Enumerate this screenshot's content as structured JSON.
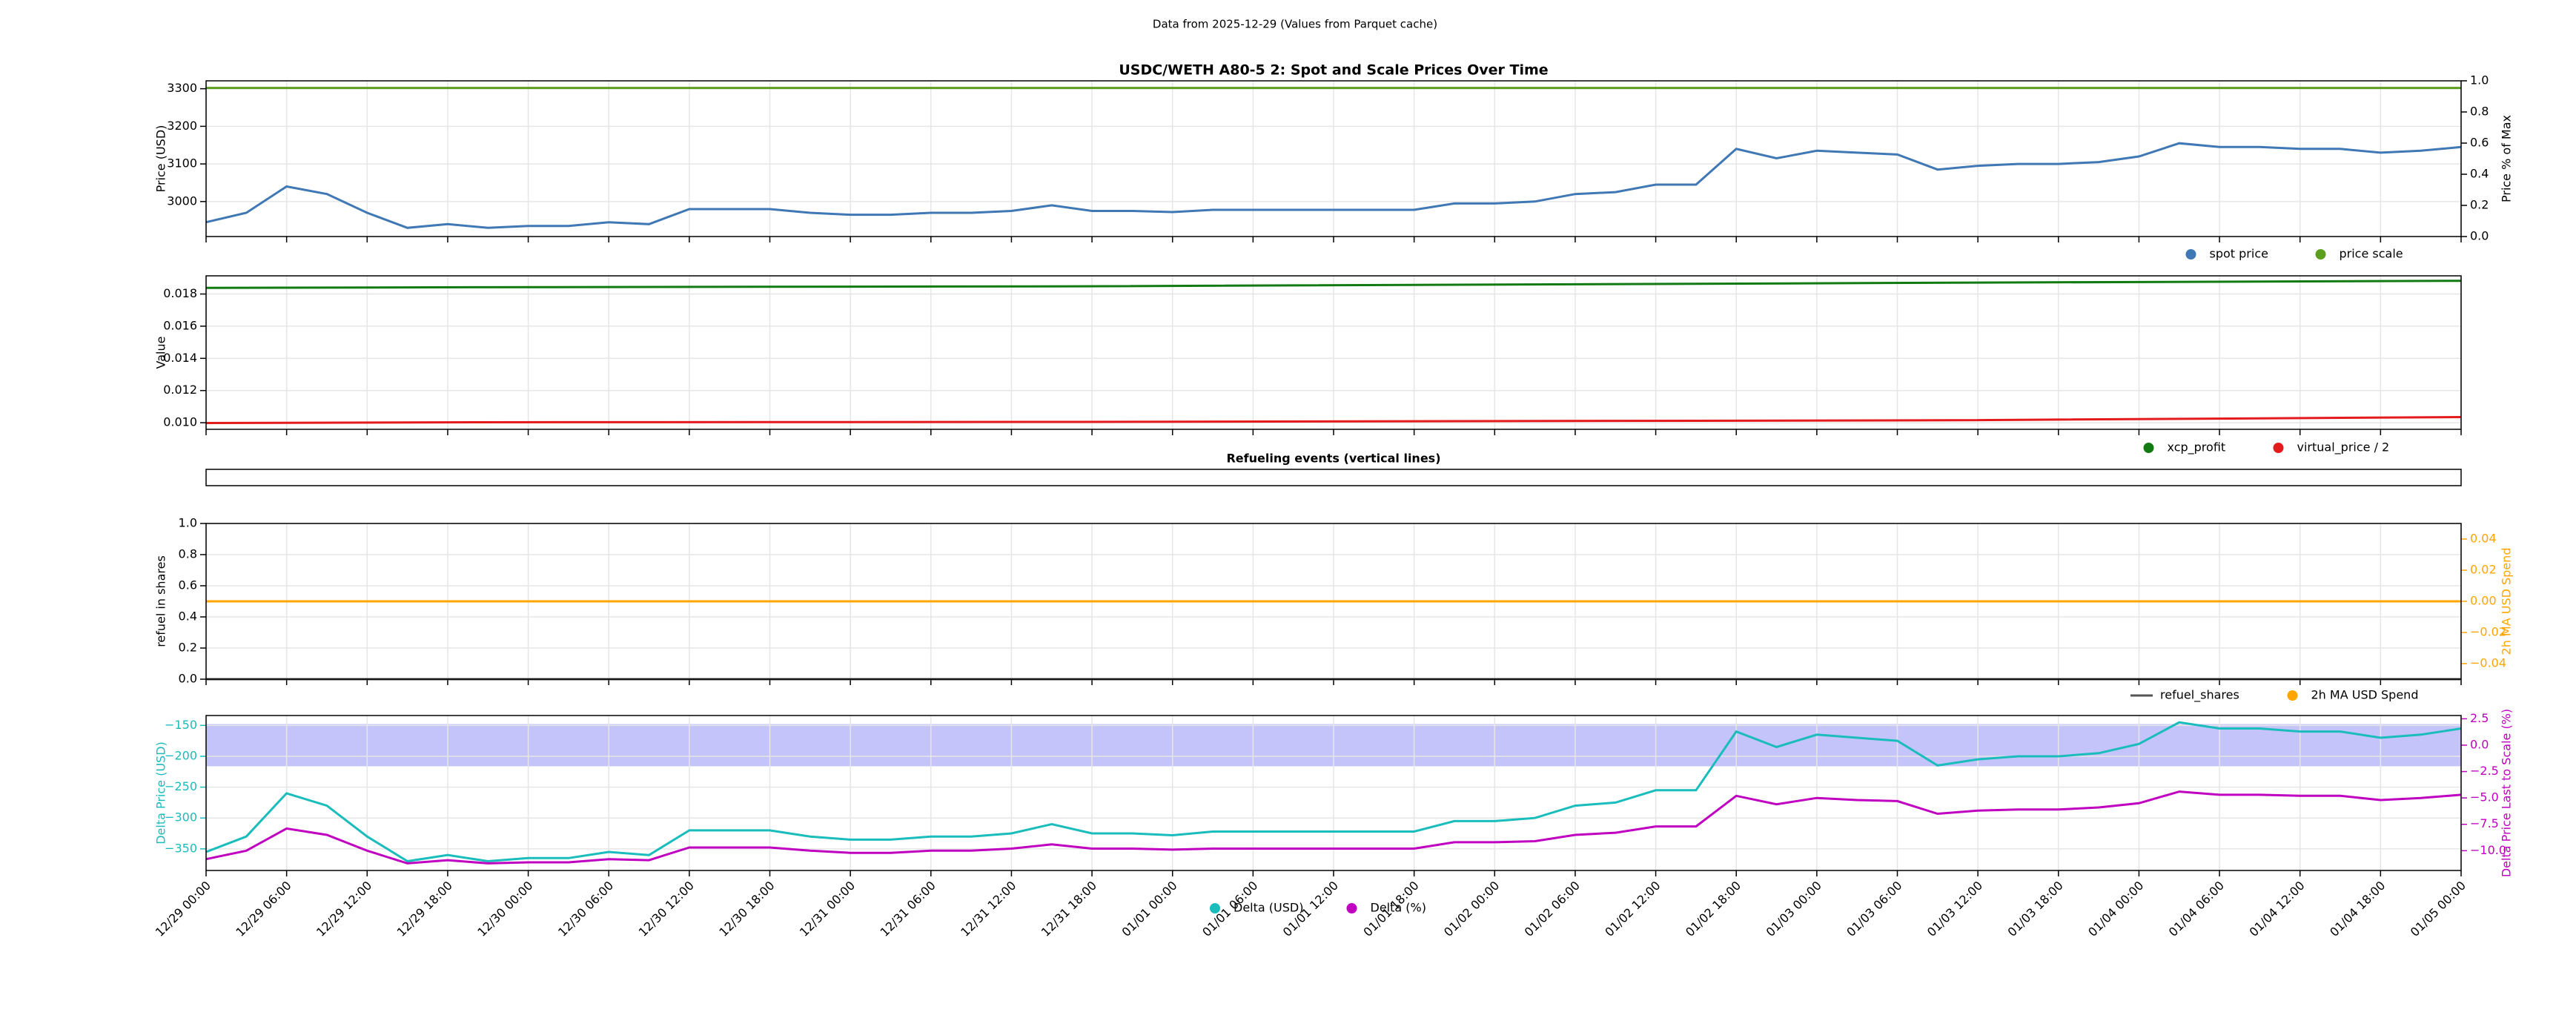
{
  "title": "Data from 2025-12-29 (Values from Parquet cache)",
  "chart_data": [
    {
      "type": "line",
      "title": "USDC/WETH A80-5 2: Spot and Scale Prices Over Time",
      "ylabel": "Price (USD)",
      "y2label": "Price % of Max",
      "grid": true,
      "legend": "below right",
      "xlim": [
        0,
        168
      ],
      "xticks": [
        0,
        6,
        12,
        18,
        24,
        30,
        36,
        42,
        48,
        54,
        60,
        66,
        72,
        78,
        84,
        90,
        96,
        102,
        108,
        114,
        120,
        126,
        132,
        138,
        144,
        150,
        156,
        162,
        168
      ],
      "ylim": [
        2907,
        3321
      ],
      "yticks": [
        3000,
        3100,
        3200,
        3300
      ],
      "y2lim": [
        0,
        1
      ],
      "y2ticks": [
        {
          "value": 0,
          "label": "0.0"
        },
        0.2,
        0.4,
        0.6,
        0.8,
        {
          "value": 1,
          "label": "1.0"
        }
      ],
      "x": [
        0,
        3,
        6,
        9,
        12,
        15,
        18,
        21,
        24,
        27,
        30,
        33,
        36,
        39,
        42,
        45,
        48,
        51,
        54,
        57,
        60,
        63,
        66,
        69,
        72,
        75,
        78,
        81,
        84,
        87,
        90,
        93,
        96,
        99,
        102,
        105,
        108,
        111,
        114,
        117,
        120,
        123,
        126,
        129,
        132,
        135,
        138,
        141,
        144,
        147,
        150,
        153,
        156,
        159,
        162,
        165,
        168
      ],
      "series": [
        {
          "name": "spot price",
          "color": "#3f78b4",
          "values": [
            2945,
            2970,
            3040,
            3020,
            2970,
            2930,
            2940,
            2930,
            2935,
            2935,
            2945,
            2940,
            2980,
            2980,
            2980,
            2970,
            2965,
            2965,
            2970,
            2970,
            2975,
            2990,
            2975,
            2975,
            2972,
            2978,
            2978,
            2978,
            2978,
            2978,
            2978,
            2995,
            2995,
            3000,
            3020,
            3025,
            3045,
            3045,
            3140,
            3115,
            3135,
            3130,
            3125,
            3085,
            3095,
            3100,
            3100,
            3105,
            3120,
            3155,
            3145,
            3145,
            3140,
            3140,
            3130,
            3135,
            3145
          ]
        },
        {
          "name": "price scale",
          "color": "#5c9e1e",
          "x": [
            0,
            168
          ],
          "values": [
            3302,
            3302
          ]
        }
      ]
    },
    {
      "type": "line",
      "ylabel": "Value",
      "grid": true,
      "legend": "below right",
      "xlim": [
        0,
        168
      ],
      "xticks": [
        0,
        6,
        12,
        18,
        24,
        30,
        36,
        42,
        48,
        54,
        60,
        66,
        72,
        78,
        84,
        90,
        96,
        102,
        108,
        114,
        120,
        126,
        132,
        138,
        144,
        150,
        156,
        162,
        168
      ],
      "ylim": [
        0.00959,
        0.01913
      ],
      "yticks": [
        {
          "value": 0.01,
          "label": "0.010"
        },
        {
          "value": 0.012,
          "label": "0.012"
        },
        {
          "value": 0.014,
          "label": "0.014"
        },
        {
          "value": 0.016,
          "label": "0.016"
        },
        {
          "value": 0.018,
          "label": "0.018"
        }
      ],
      "series": [
        {
          "name": "xcp_profit",
          "color": "#127a12",
          "x": [
            0,
            20,
            65,
            130,
            168
          ],
          "values": [
            0.01838,
            0.01842,
            0.01848,
            0.0187,
            0.01882
          ]
        },
        {
          "name": "virtual_price / 2",
          "color": "#e41a1c",
          "x": [
            0,
            20,
            65,
            130,
            168
          ],
          "values": [
            0.00998,
            0.01003,
            0.01005,
            0.01015,
            0.01035
          ]
        }
      ]
    },
    {
      "type": "line",
      "title": "Refueling events (vertical lines)",
      "xlim": [
        0,
        168
      ],
      "series": []
    },
    {
      "type": "line",
      "ylabel": "refuel in shares",
      "y2label": "2h MA USD Spend",
      "y2_color": "#ffa500",
      "grid": true,
      "legend": "below right",
      "xlim": [
        0,
        168
      ],
      "xticks": [
        0,
        6,
        12,
        18,
        24,
        30,
        36,
        42,
        48,
        54,
        60,
        66,
        72,
        78,
        84,
        90,
        96,
        102,
        108,
        114,
        120,
        126,
        132,
        138,
        144,
        150,
        156,
        162,
        168
      ],
      "ylim": [
        0,
        1
      ],
      "yticks": [
        {
          "value": 0,
          "label": "0.0"
        },
        0.2,
        0.4,
        0.6,
        0.8,
        {
          "value": 1,
          "label": "1.0"
        }
      ],
      "y2lim": [
        -0.05,
        0.05
      ],
      "y2ticks": [
        {
          "value": -0.04,
          "label": "−0.04"
        },
        {
          "value": -0.02,
          "label": "−0.02"
        },
        {
          "value": 0,
          "label": "0.00"
        },
        0.02,
        0.04
      ],
      "series": [
        {
          "name": "refuel_shares",
          "color": "#555555",
          "legend_marker": "line",
          "x": [
            0,
            168
          ],
          "values": [
            0,
            0
          ]
        },
        {
          "name": "2h MA USD Spend",
          "color": "#ffa500",
          "axis": "y2",
          "x": [
            0,
            168
          ],
          "values": [
            0,
            0
          ]
        }
      ]
    },
    {
      "type": "line",
      "ylabel": "Delta Price (USD)",
      "y2label": "Delta Price Last to Scale (%)",
      "y_color": "#1abcbc",
      "y2_color": "#c000c0",
      "grid": true,
      "legend": "below center",
      "xlim": [
        0,
        168
      ],
      "xticks": [
        {
          "value": 0,
          "label": "12/29 00:00"
        },
        {
          "value": 6,
          "label": "12/29 06:00"
        },
        {
          "value": 12,
          "label": "12/29 12:00"
        },
        {
          "value": 18,
          "label": "12/29 18:00"
        },
        {
          "value": 24,
          "label": "12/30 00:00"
        },
        {
          "value": 30,
          "label": "12/30 06:00"
        },
        {
          "value": 36,
          "label": "12/30 12:00"
        },
        {
          "value": 42,
          "label": "12/30 18:00"
        },
        {
          "value": 48,
          "label": "12/31 00:00"
        },
        {
          "value": 54,
          "label": "12/31 06:00"
        },
        {
          "value": 60,
          "label": "12/31 12:00"
        },
        {
          "value": 66,
          "label": "12/31 18:00"
        },
        {
          "value": 72,
          "label": "01/01 00:00"
        },
        {
          "value": 78,
          "label": "01/01 06:00"
        },
        {
          "value": 84,
          "label": "01/01 12:00"
        },
        {
          "value": 90,
          "label": "01/01 18:00"
        },
        {
          "value": 96,
          "label": "01/02 00:00"
        },
        {
          "value": 102,
          "label": "01/02 06:00"
        },
        {
          "value": 108,
          "label": "01/02 12:00"
        },
        {
          "value": 114,
          "label": "01/02 18:00"
        },
        {
          "value": 120,
          "label": "01/03 00:00"
        },
        {
          "value": 126,
          "label": "01/03 06:00"
        },
        {
          "value": 132,
          "label": "01/03 12:00"
        },
        {
          "value": 138,
          "label": "01/03 18:00"
        },
        {
          "value": 144,
          "label": "01/04 00:00"
        },
        {
          "value": 150,
          "label": "01/04 06:00"
        },
        {
          "value": 156,
          "label": "01/04 12:00"
        },
        {
          "value": 162,
          "label": "01/04 18:00"
        },
        {
          "value": 168,
          "label": "01/05 00:00"
        }
      ],
      "ylim": [
        -385,
        -134
      ],
      "yticks": [
        {
          "value": -350,
          "label": "−350"
        },
        {
          "value": -300,
          "label": "−300"
        },
        {
          "value": -250,
          "label": "−250"
        },
        {
          "value": -200,
          "label": "−200"
        },
        {
          "value": -150,
          "label": "−150"
        }
      ],
      "y2lim": [
        -11.875,
        2.81
      ],
      "y2ticks": [
        {
          "value": -10,
          "label": "−10.0"
        },
        {
          "value": -7.5,
          "label": "−7.5"
        },
        {
          "value": -5,
          "label": "−5.0"
        },
        {
          "value": -2.5,
          "label": "−2.5"
        },
        {
          "value": 0,
          "label": "0.0"
        },
        2.5
      ],
      "band": {
        "axis": "y2",
        "range": [
          -2,
          2
        ],
        "color": "#c4c4fb"
      },
      "x": [
        0,
        3,
        6,
        9,
        12,
        15,
        18,
        21,
        24,
        27,
        30,
        33,
        36,
        39,
        42,
        45,
        48,
        51,
        54,
        57,
        60,
        63,
        66,
        69,
        72,
        75,
        78,
        81,
        84,
        87,
        90,
        93,
        96,
        99,
        102,
        105,
        108,
        111,
        114,
        117,
        120,
        123,
        126,
        129,
        132,
        135,
        138,
        141,
        144,
        147,
        150,
        153,
        156,
        159,
        162,
        165,
        168
      ],
      "series": [
        {
          "name": "Delta (USD)",
          "color": "#1abcbc",
          "values": [
            -355,
            -330,
            -260,
            -280,
            -330,
            -370,
            -360,
            -370,
            -365,
            -365,
            -355,
            -360,
            -320,
            -320,
            -320,
            -330,
            -335,
            -335,
            -330,
            -330,
            -325,
            -310,
            -325,
            -325,
            -328,
            -322,
            -322,
            -322,
            -322,
            -322,
            -322,
            -305,
            -305,
            -300,
            -280,
            -275,
            -255,
            -255,
            -160,
            -185,
            -165,
            -170,
            -175,
            -215,
            -205,
            -200,
            -200,
            -195,
            -180,
            -145,
            -155,
            -155,
            -160,
            -160,
            -170,
            -165,
            -155
          ]
        },
        {
          "name": "Delta (%)",
          "color": "#c000c0",
          "axis": "y2",
          "values": [
            -10.8,
            -10.0,
            -7.9,
            -8.5,
            -10.0,
            -11.2,
            -10.9,
            -11.2,
            -11.1,
            -11.1,
            -10.8,
            -10.9,
            -9.7,
            -9.7,
            -9.7,
            -10.0,
            -10.2,
            -10.2,
            -10.0,
            -10.0,
            -9.8,
            -9.4,
            -9.8,
            -9.8,
            -9.9,
            -9.8,
            -9.8,
            -9.8,
            -9.8,
            -9.8,
            -9.8,
            -9.2,
            -9.2,
            -9.1,
            -8.5,
            -8.3,
            -7.7,
            -7.7,
            -4.8,
            -5.6,
            -5.0,
            -5.2,
            -5.3,
            -6.5,
            -6.2,
            -6.1,
            -6.1,
            -5.9,
            -5.5,
            -4.4,
            -4.7,
            -4.7,
            -4.8,
            -4.8,
            -5.2,
            -5.0,
            -4.7
          ]
        }
      ]
    }
  ]
}
